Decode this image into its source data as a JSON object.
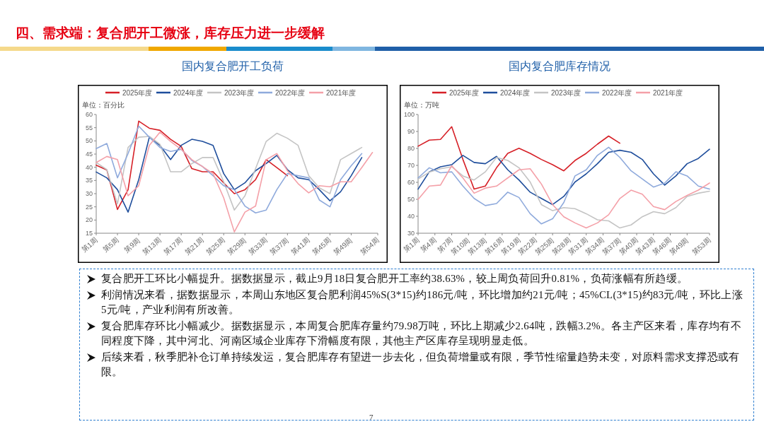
{
  "chart_data": [
    {
      "type": "line",
      "title": "国内复合肥开工负荷",
      "annotations": [
        "单位：百分比"
      ],
      "legend": "top",
      "categories": [
        "第1周",
        null,
        null,
        null,
        "第5周",
        null,
        null,
        null,
        "第9周",
        null,
        null,
        null,
        "第13周",
        null,
        null,
        null,
        "第17周",
        null,
        null,
        null,
        "第21周",
        null,
        null,
        null,
        "第25周",
        null,
        null,
        null,
        "第29周",
        null,
        null,
        null,
        "第33周",
        null,
        null,
        null,
        "第37周",
        null,
        null,
        null,
        "第41周",
        null,
        null,
        null,
        "第45周",
        null,
        null,
        null,
        "第49周",
        null,
        null,
        null,
        null,
        "第54周"
      ],
      "ylim": [
        15,
        60
      ],
      "yticks": [
        15,
        20,
        25,
        30,
        35,
        40,
        45,
        50,
        55,
        60
      ],
      "series": [
        {
          "name": "2025年度",
          "color": "#d62027",
          "values": [
            40.8,
            null,
            39,
            null,
            24,
            null,
            31.5,
            null,
            57.5,
            null,
            54.8,
            null,
            54,
            null,
            50.6,
            null,
            47.9,
            null,
            39.5,
            null,
            38.3,
            null,
            38.3,
            null,
            34.1,
            null,
            30,
            null,
            31.5,
            null,
            35.3,
            null,
            42.9,
            null,
            39.9,
            null,
            36.8,
            null,
            null,
            null,
            null,
            null,
            null,
            null,
            null,
            null,
            null,
            null,
            null,
            null,
            null,
            null,
            null,
            null
          ]
        },
        {
          "name": "2024年度",
          "color": "#1f4e9c",
          "values": [
            38.2,
            null,
            36,
            null,
            31.5,
            null,
            23,
            null,
            35.3,
            null,
            51.4,
            null,
            48.3,
            null,
            42.9,
            null,
            48.3,
            null,
            50.6,
            null,
            49.8,
            null,
            48.3,
            null,
            37.6,
            null,
            31.5,
            null,
            34.1,
            null,
            38.7,
            null,
            41.4,
            null,
            44.5,
            null,
            39.1,
            null,
            36,
            null,
            35.3,
            null,
            31.5,
            null,
            27.3,
            null,
            30.7,
            null,
            36.8,
            null,
            43.7,
            null,
            null,
            null
          ]
        },
        {
          "name": "2023年度",
          "color": "#c4c4c4",
          "values": [
            41.8,
            null,
            39.1,
            null,
            26.1,
            null,
            47.5,
            null,
            51.4,
            null,
            51.7,
            null,
            48.7,
            null,
            38.3,
            null,
            38.3,
            null,
            41.4,
            null,
            43.7,
            null,
            43.7,
            null,
            34.5,
            null,
            23.8,
            null,
            29.2,
            null,
            39.5,
            null,
            49.8,
            null,
            52.9,
            null,
            51,
            null,
            48.3,
            null,
            36.8,
            null,
            32.2,
            null,
            30,
            null,
            42.9,
            null,
            45.2,
            null,
            47.5,
            null,
            null,
            null
          ]
        },
        {
          "name": "2022年度",
          "color": "#8faadc",
          "values": [
            47.1,
            null,
            49,
            null,
            36,
            null,
            45.2,
            null,
            55.6,
            null,
            51.4,
            null,
            47.5,
            null,
            46,
            null,
            46.8,
            null,
            42.6,
            null,
            40.3,
            null,
            36.8,
            null,
            33,
            null,
            31.5,
            null,
            25.3,
            null,
            22.7,
            null,
            23.8,
            null,
            31.5,
            null,
            37.6,
            null,
            36.8,
            null,
            36,
            null,
            27.6,
            null,
            25,
            null,
            35.3,
            null,
            40.6,
            null,
            45.2,
            null,
            null,
            null
          ]
        },
        {
          "name": "2021年度",
          "color": "#f4a0a8",
          "values": [
            41.8,
            null,
            44.1,
            null,
            42.9,
            null,
            29.2,
            null,
            33,
            null,
            48.3,
            null,
            53.3,
            null,
            49.8,
            null,
            46.8,
            null,
            42.9,
            null,
            40.3,
            null,
            37.6,
            null,
            28.4,
            null,
            15.5,
            null,
            23,
            null,
            25.3,
            null,
            42.9,
            null,
            45.2,
            null,
            38.7,
            null,
            33.8,
            null,
            30.3,
            null,
            33,
            null,
            32.6,
            null,
            34.5,
            null,
            34.5,
            null,
            39.9,
            null,
            45.6,
            null
          ]
        }
      ]
    },
    {
      "type": "line",
      "title": "国内复合肥库存情况",
      "annotations": [
        "单位：万吨"
      ],
      "legend": "top",
      "categories": [
        "第1周",
        null,
        null,
        "第4周",
        null,
        null,
        "第7周",
        null,
        null,
        "第10周",
        null,
        null,
        "第13周",
        null,
        null,
        "第16周",
        null,
        null,
        "第19周",
        null,
        null,
        "第22周",
        null,
        null,
        "第25周",
        null,
        null,
        "第28周",
        null,
        null,
        "第31周",
        null,
        null,
        "第34周",
        null,
        null,
        "第37周",
        null,
        null,
        "第40周",
        null,
        null,
        "第43周",
        null,
        null,
        "第46周",
        null,
        null,
        "第49周",
        null,
        null,
        null,
        "第53周"
      ],
      "ylim": [
        30,
        100
      ],
      "yticks": [
        30,
        40,
        50,
        60,
        70,
        80,
        90,
        100
      ],
      "series": [
        {
          "name": "2025年度",
          "color": "#d62027",
          "values": [
            81.3,
            null,
            84.9,
            null,
            85.3,
            null,
            92.8,
            null,
            73.5,
            null,
            56,
            null,
            57.8,
            null,
            68.6,
            null,
            77.1,
            null,
            80.1,
            null,
            77.1,
            null,
            73.5,
            null,
            70.4,
            null,
            66.8,
            null,
            72.9,
            null,
            77.1,
            null,
            82.5,
            null,
            87.3,
            null,
            83.1,
            null,
            null,
            null,
            null,
            null,
            null,
            null,
            null,
            null,
            null,
            null,
            null,
            null,
            null,
            null,
            null
          ]
        },
        {
          "name": "2024年度",
          "color": "#1f4e9c",
          "values": [
            56,
            null,
            66.2,
            null,
            69.2,
            null,
            70.4,
            null,
            75.9,
            null,
            71.7,
            null,
            71,
            null,
            75.3,
            null,
            67.4,
            null,
            61.4,
            null,
            54.2,
            null,
            50.5,
            null,
            46.9,
            null,
            51.7,
            null,
            60.2,
            null,
            65,
            null,
            71,
            null,
            77.7,
            null,
            78.9,
            null,
            77.7,
            null,
            73.5,
            null,
            65,
            null,
            58.4,
            null,
            63.8,
            null,
            71,
            null,
            74.1,
            null,
            79.5
          ]
        },
        {
          "name": "2023年度",
          "color": "#c4c4c4",
          "values": [
            62,
            null,
            66,
            null,
            68,
            null,
            69.2,
            null,
            63.8,
            null,
            61.4,
            null,
            66.2,
            null,
            74.7,
            null,
            72.9,
            null,
            68.6,
            null,
            60.2,
            null,
            46.9,
            null,
            43.3,
            null,
            45.1,
            null,
            44.5,
            null,
            41.5,
            null,
            37.9,
            null,
            37.3,
            null,
            33.1,
            null,
            34.9,
            null,
            39.7,
            null,
            42.7,
            null,
            41.5,
            null,
            45.1,
            null,
            51.7,
            null,
            53.6,
            null,
            54.8
          ]
        },
        {
          "name": "2022年度",
          "color": "#8faadc",
          "values": [
            62.6,
            null,
            68.6,
            null,
            65.6,
            null,
            66.2,
            null,
            57.8,
            null,
            50.5,
            null,
            46.3,
            null,
            47.5,
            null,
            54.2,
            null,
            51.1,
            null,
            41.5,
            null,
            35.5,
            null,
            38.5,
            null,
            48.1,
            null,
            63.8,
            null,
            67.4,
            null,
            75.9,
            null,
            80.7,
            null,
            74.7,
            null,
            66.8,
            null,
            62,
            null,
            57.2,
            null,
            59.6,
            null,
            66.2,
            null,
            63.8,
            null,
            57.8,
            null,
            56
          ]
        },
        {
          "name": "2021年度",
          "color": "#f4a0a8",
          "values": [
            49.9,
            null,
            57.8,
            null,
            58.4,
            null,
            69.8,
            null,
            62.6,
            null,
            53.6,
            null,
            56.6,
            null,
            57.8,
            null,
            62.6,
            null,
            67.4,
            null,
            68,
            null,
            59,
            null,
            46.9,
            null,
            39.7,
            null,
            36.1,
            null,
            33.1,
            null,
            36.1,
            null,
            40.9,
            null,
            50.5,
            null,
            55.4,
            null,
            53,
            null,
            45.7,
            null,
            43.9,
            null,
            48.7,
            null,
            52.3,
            null,
            55.4,
            null,
            59.6
          ]
        }
      ]
    },
    {
      "type": "other",
      "title": "四、需求端：复合肥开工微涨，库存压力进一步缓解",
      "annotations": [
        "复合肥开工环比小幅提升。据数据显示，截止9月18日复合肥开工率约38.63%，较上周负荷回升0.81%，负荷涨幅有所趋缓。",
        "利润情况来看，据数据显示，本周山东地区复合肥利润45%S(3*15)约186元/吨，环比增加约21元/吨；45%CL(3*15)约83元/吨，环比上涨5元/吨，产业利润有所改善。",
        "复合肥库存环比小幅减少。据数据显示，本周复合肥库存量约79.98万吨，环比上期减少2.64吨，跌幅3.2%。各主产区来看，库存均有不同程度下降，其中河北、河南区域企业库存下滑幅度有限，其他主产区库存呈现明显走低。",
        "后续来看，秋季肥补仓订单持续发运，复合肥库存有望进一步去化，但负荷增量或有限，季节性缩量趋势未变，对原料需求支撑恐或有限。",
        "7"
      ]
    }
  ]
}
